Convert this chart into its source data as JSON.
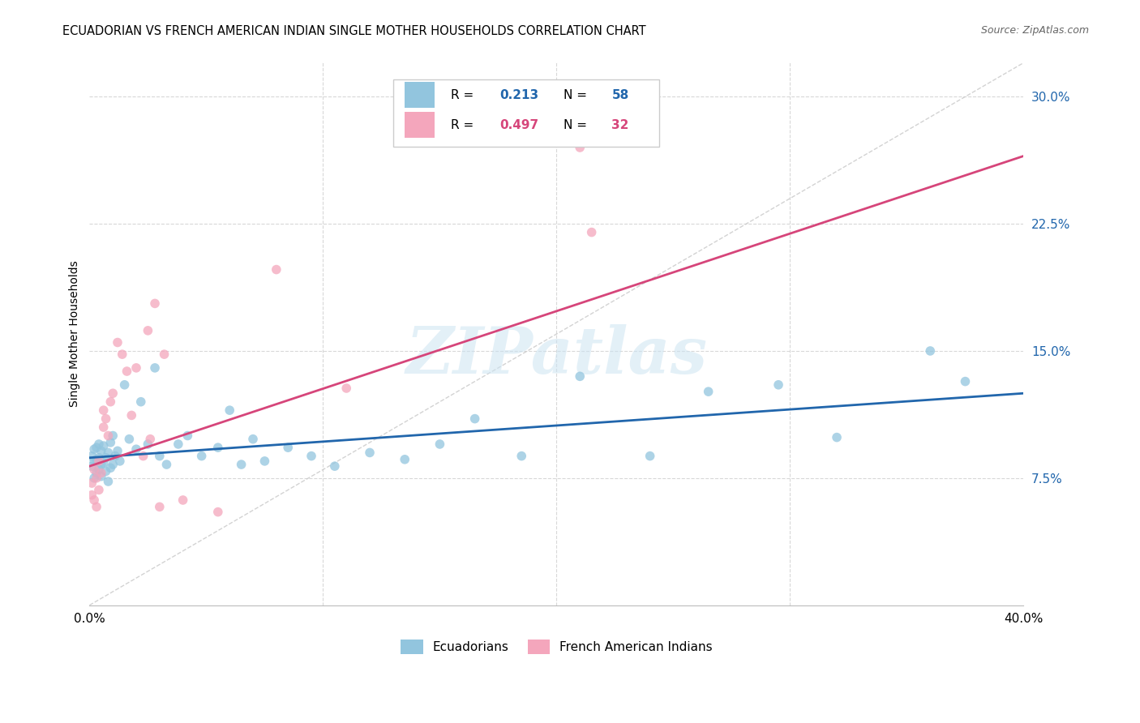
{
  "title": "ECUADORIAN VS FRENCH AMERICAN INDIAN SINGLE MOTHER HOUSEHOLDS CORRELATION CHART",
  "source": "Source: ZipAtlas.com",
  "ylabel": "Single Mother Households",
  "xlim": [
    0.0,
    0.4
  ],
  "ylim": [
    0.0,
    0.32
  ],
  "yticks_right": [
    0.075,
    0.15,
    0.225,
    0.3
  ],
  "yticklabels_right": [
    "7.5%",
    "15.0%",
    "22.5%",
    "30.0%"
  ],
  "R_blue": 0.213,
  "N_blue": 58,
  "R_pink": 0.497,
  "N_pink": 32,
  "color_blue": "#92c5de",
  "color_pink": "#f4a6bc",
  "line_blue": "#2166ac",
  "line_pink": "#d6457a",
  "line_diagonal_color": "#c8c8c8",
  "grid_color": "#d8d8d8",
  "watermark": "ZIPatlas",
  "legend_label_blue": "Ecuadorians",
  "legend_label_pink": "French American Indians",
  "blue_x": [
    0.001,
    0.001,
    0.002,
    0.002,
    0.002,
    0.003,
    0.003,
    0.003,
    0.004,
    0.004,
    0.004,
    0.005,
    0.005,
    0.005,
    0.006,
    0.006,
    0.007,
    0.007,
    0.008,
    0.008,
    0.009,
    0.009,
    0.01,
    0.01,
    0.011,
    0.012,
    0.013,
    0.015,
    0.017,
    0.02,
    0.022,
    0.025,
    0.028,
    0.03,
    0.033,
    0.038,
    0.042,
    0.048,
    0.055,
    0.06,
    0.065,
    0.07,
    0.075,
    0.085,
    0.095,
    0.105,
    0.12,
    0.135,
    0.15,
    0.165,
    0.185,
    0.21,
    0.24,
    0.265,
    0.295,
    0.32,
    0.36,
    0.375
  ],
  "blue_y": [
    0.082,
    0.088,
    0.075,
    0.085,
    0.092,
    0.078,
    0.086,
    0.093,
    0.08,
    0.087,
    0.095,
    0.076,
    0.083,
    0.091,
    0.084,
    0.094,
    0.079,
    0.087,
    0.073,
    0.09,
    0.081,
    0.096,
    0.083,
    0.1,
    0.088,
    0.091,
    0.085,
    0.13,
    0.098,
    0.092,
    0.12,
    0.095,
    0.14,
    0.088,
    0.083,
    0.095,
    0.1,
    0.088,
    0.093,
    0.115,
    0.083,
    0.098,
    0.085,
    0.093,
    0.088,
    0.082,
    0.09,
    0.086,
    0.095,
    0.11,
    0.088,
    0.135,
    0.088,
    0.126,
    0.13,
    0.099,
    0.15,
    0.132
  ],
  "pink_x": [
    0.001,
    0.001,
    0.002,
    0.002,
    0.003,
    0.003,
    0.004,
    0.004,
    0.005,
    0.006,
    0.006,
    0.007,
    0.008,
    0.009,
    0.01,
    0.012,
    0.014,
    0.016,
    0.018,
    0.02,
    0.023,
    0.026,
    0.03,
    0.025,
    0.028,
    0.032,
    0.04,
    0.055,
    0.08,
    0.11,
    0.21,
    0.215
  ],
  "pink_y": [
    0.065,
    0.072,
    0.062,
    0.08,
    0.058,
    0.075,
    0.068,
    0.085,
    0.078,
    0.115,
    0.105,
    0.11,
    0.1,
    0.12,
    0.125,
    0.155,
    0.148,
    0.138,
    0.112,
    0.14,
    0.088,
    0.098,
    0.058,
    0.162,
    0.178,
    0.148,
    0.062,
    0.055,
    0.198,
    0.128,
    0.27,
    0.22
  ]
}
